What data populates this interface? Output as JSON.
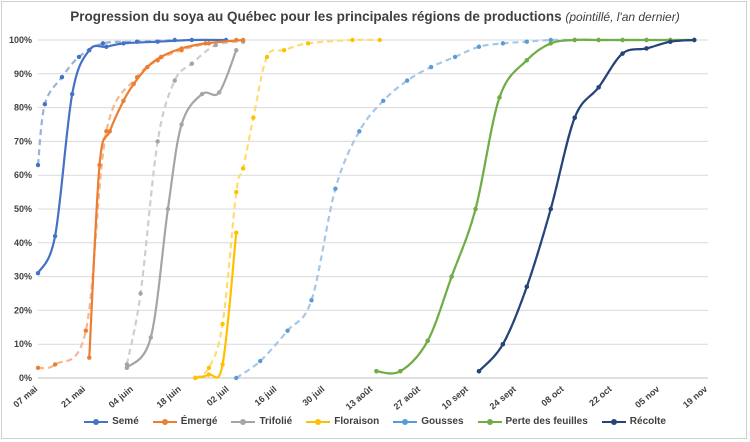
{
  "chart_data": {
    "type": "line",
    "title": "Progression du soya au Québec pour les principales régions de productions",
    "subtitle": "(pointillé, l'an dernier)",
    "y_ticks": [
      "0%",
      "10%",
      "20%",
      "30%",
      "40%",
      "50%",
      "60%",
      "70%",
      "80%",
      "90%",
      "100%"
    ],
    "x_ticks": [
      "07 mai",
      "21 mai",
      "04 juin",
      "18 juin",
      "02 juil",
      "16 juil",
      "30 juil",
      "13 août",
      "27 août",
      "10 sept",
      "24 sept",
      "08 oct",
      "22 oct",
      "05 nov",
      "19 nov"
    ],
    "ylim": [
      0,
      100
    ],
    "xlim_days": [
      0,
      196
    ],
    "grid": true,
    "legend_position": "bottom",
    "series": [
      {
        "name": "Semé",
        "color": "#4472C4",
        "current": {
          "x": [
            0,
            5,
            10,
            15,
            20,
            25,
            35,
            45,
            55
          ],
          "y": [
            31,
            42,
            84,
            97,
            98,
            99,
            99.5,
            100,
            100
          ]
        },
        "previous": {
          "x": [
            0,
            2,
            7,
            12,
            19,
            29,
            40
          ],
          "y": [
            63,
            81,
            89,
            95,
            99,
            99.5,
            100
          ]
        }
      },
      {
        "name": "Émergé",
        "color": "#ED7D31",
        "current": {
          "x": [
            15,
            18,
            21,
            25,
            28,
            32,
            36,
            42,
            49,
            60
          ],
          "y": [
            6,
            63,
            73,
            82,
            87,
            92,
            95,
            97.5,
            99,
            100
          ]
        },
        "previous": {
          "x": [
            0,
            5,
            14,
            20,
            29,
            35,
            42,
            50,
            58
          ],
          "y": [
            3,
            4,
            14,
            73,
            89,
            94,
            97,
            99,
            100
          ]
        }
      },
      {
        "name": "Trifolié",
        "color": "#A5A5A5",
        "current": {
          "x": [
            26,
            33,
            38,
            42,
            48,
            53,
            58
          ],
          "y": [
            3,
            12,
            50,
            75,
            84,
            84.5,
            97
          ]
        },
        "previous": {
          "x": [
            26,
            30,
            35,
            40,
            45,
            52,
            60
          ],
          "y": [
            4,
            25,
            70,
            88,
            93,
            98.5,
            99.5
          ]
        }
      },
      {
        "name": "Floraison",
        "color": "#FFC000",
        "current": {
          "x": [
            46,
            50,
            54,
            58
          ],
          "y": [
            0,
            1,
            4,
            43
          ]
        },
        "previous": {
          "x": [
            46,
            50,
            54,
            58,
            60,
            63,
            67,
            72,
            79,
            92,
            100
          ],
          "y": [
            0,
            3,
            16,
            55,
            62,
            77,
            95,
            97,
            99,
            100,
            100
          ]
        }
      },
      {
        "name": "Gousses",
        "color": "#5B9BD5",
        "previous": {
          "x": [
            58,
            65,
            73,
            80,
            87,
            94,
            101,
            108,
            115,
            122,
            129,
            136,
            143,
            150,
            157
          ],
          "y": [
            0,
            5,
            14,
            23,
            56,
            73,
            82,
            88,
            92,
            95,
            98,
            99,
            99.5,
            100,
            100
          ]
        }
      },
      {
        "name": "Perte des feuilles",
        "color": "#70AD47",
        "current": {
          "x": [
            99,
            106,
            114,
            121,
            128,
            135,
            143,
            150,
            157,
            164,
            171,
            178,
            185,
            192
          ],
          "y": [
            2,
            2,
            11,
            30,
            50,
            83,
            94,
            99,
            100,
            100,
            100,
            100,
            100,
            100
          ]
        },
        "previous": {
          "x": [
            99,
            106,
            114,
            121,
            128,
            135,
            143,
            150,
            157,
            164,
            171,
            178,
            185,
            192
          ],
          "y": [
            2,
            2,
            11,
            30,
            50,
            83,
            94,
            99,
            100,
            100,
            100,
            100,
            100,
            100
          ]
        }
      },
      {
        "name": "Récolte",
        "color": "#264478",
        "current": {
          "x": [
            129,
            136,
            143,
            150,
            157,
            164,
            171,
            178,
            185,
            192
          ],
          "y": [
            2,
            10,
            27,
            50,
            77,
            86,
            96,
            97.5,
            99.5,
            100
          ]
        },
        "previous": {
          "x": [
            129,
            136,
            143,
            150,
            157,
            164,
            171,
            178,
            185,
            192
          ],
          "y": [
            2,
            10,
            27,
            50,
            77,
            86,
            96,
            97.5,
            99.5,
            100
          ]
        }
      }
    ]
  }
}
